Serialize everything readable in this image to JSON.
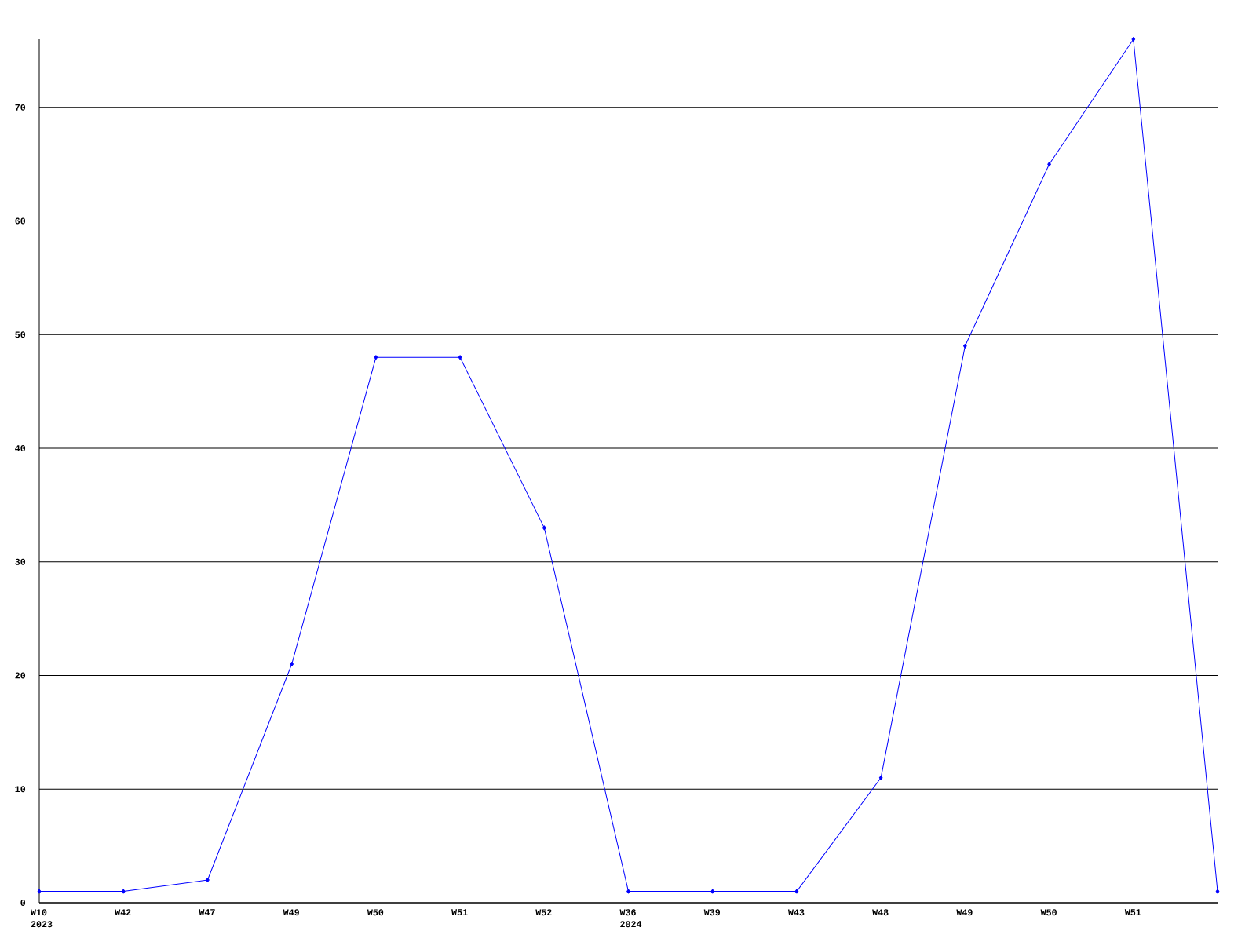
{
  "chart_data": {
    "type": "line",
    "categories": [
      "W10 2023",
      "W42",
      "W47",
      "W49",
      "W50",
      "W51",
      "W52",
      "W36 2024",
      "W39",
      "W43",
      "W48",
      "W49",
      "W50",
      "W51",
      null
    ],
    "series": [
      {
        "color": "#0000ff",
        "values": [
          1,
          1,
          2,
          21,
          48,
          48,
          33,
          1,
          1,
          1,
          11,
          49,
          65,
          76,
          1
        ]
      }
    ],
    "ylim": [
      0,
      76
    ],
    "yticks": [
      0,
      10,
      20,
      30,
      40,
      50,
      60,
      70
    ],
    "grid": "y",
    "marker": "diamond",
    "line_style": "solid"
  }
}
